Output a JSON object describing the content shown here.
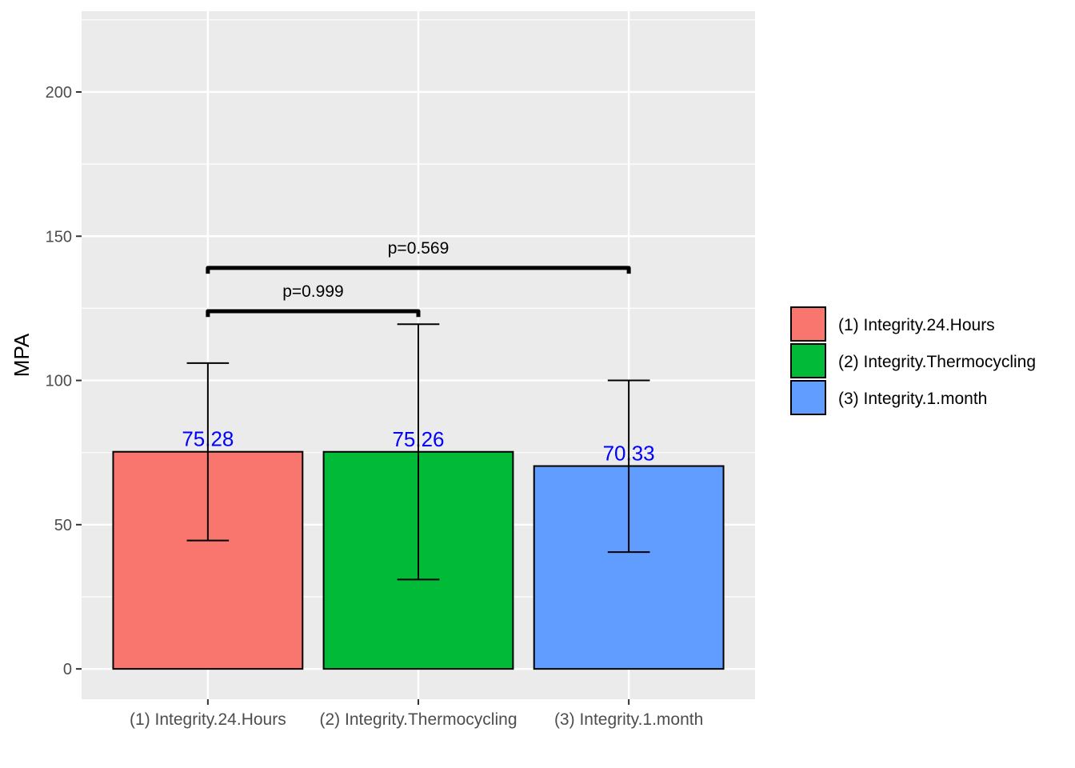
{
  "chart_data": {
    "type": "bar",
    "title": "",
    "xlabel": "",
    "ylabel": "MPA",
    "ylim": [
      -10.5,
      228
    ],
    "yticks": [
      0,
      50,
      100,
      150,
      200
    ],
    "grid": true,
    "legend_position": "right",
    "categories": [
      "(1) Integrity.24.Hours",
      "(2) Integrity.Thermocycling",
      "(3) Integrity.1.month"
    ],
    "values": [
      75.28,
      75.26,
      70.33
    ],
    "data_labels": [
      "75.28",
      "75.26",
      "70.33"
    ],
    "error_bars": [
      {
        "low": 44.5,
        "high": 106
      },
      {
        "low": 31,
        "high": 119.5
      },
      {
        "low": 40.5,
        "high": 100
      }
    ],
    "colors": [
      "#F8766D",
      "#00BA38",
      "#619CFF"
    ],
    "data_label_color": "#0000FF",
    "comparisons": [
      {
        "from": 0,
        "to": 1,
        "y": 124,
        "label": "p=0.999"
      },
      {
        "from": 0,
        "to": 2,
        "y": 139,
        "label": "p=0.569"
      }
    ],
    "legend": [
      "(1) Integrity.24.Hours",
      "(2) Integrity.Thermocycling",
      "(3) Integrity.1.month"
    ]
  }
}
